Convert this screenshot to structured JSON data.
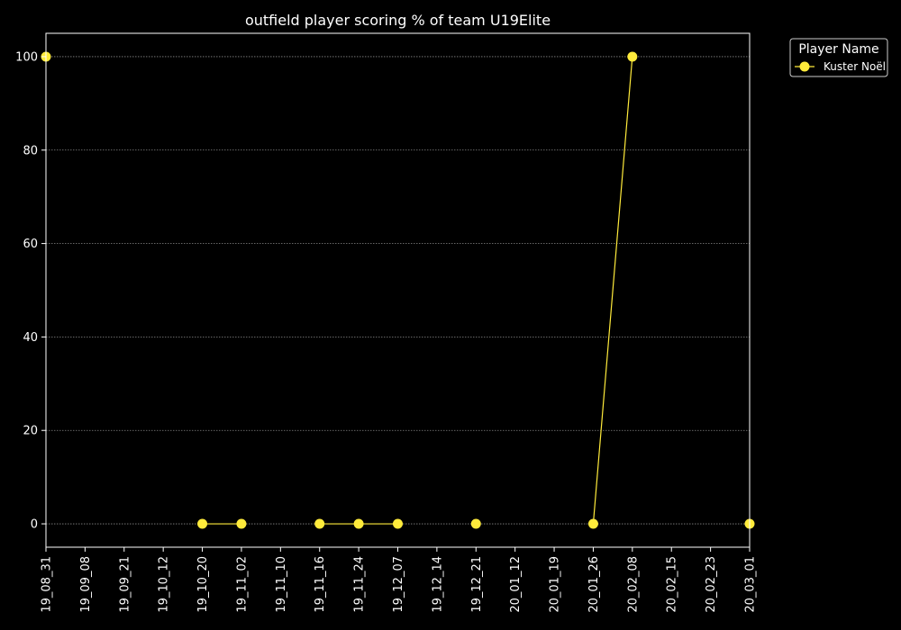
{
  "chart_data": {
    "type": "line",
    "title": "outfield player scoring % of team U19Elite",
    "xlabel": "",
    "ylabel": "",
    "categories": [
      "19_08_31",
      "19_09_08",
      "19_09_21",
      "19_10_12",
      "19_10_20",
      "19_11_02",
      "19_11_10",
      "19_11_16",
      "19_11_24",
      "19_12_07",
      "19_12_14",
      "19_12_21",
      "20_01_12",
      "20_01_19",
      "20_01_26",
      "20_02_08",
      "20_02_15",
      "20_02_23",
      "20_03_01"
    ],
    "yticks": [
      0,
      20,
      40,
      60,
      80,
      100
    ],
    "ylim": [
      -5,
      105
    ],
    "grid": "horizontal-dotted",
    "legend": {
      "title": "Player Name",
      "position": "upper-right-outside"
    },
    "series": [
      {
        "name": "Kuster Noël",
        "color": "#ffeb3b",
        "values": [
          100,
          null,
          null,
          null,
          0,
          0,
          null,
          0,
          0,
          0,
          null,
          0,
          null,
          null,
          0,
          100,
          null,
          null,
          0
        ]
      }
    ]
  },
  "colors": {
    "background": "#000000",
    "axes": "#ffffff",
    "grid": "#888888"
  }
}
